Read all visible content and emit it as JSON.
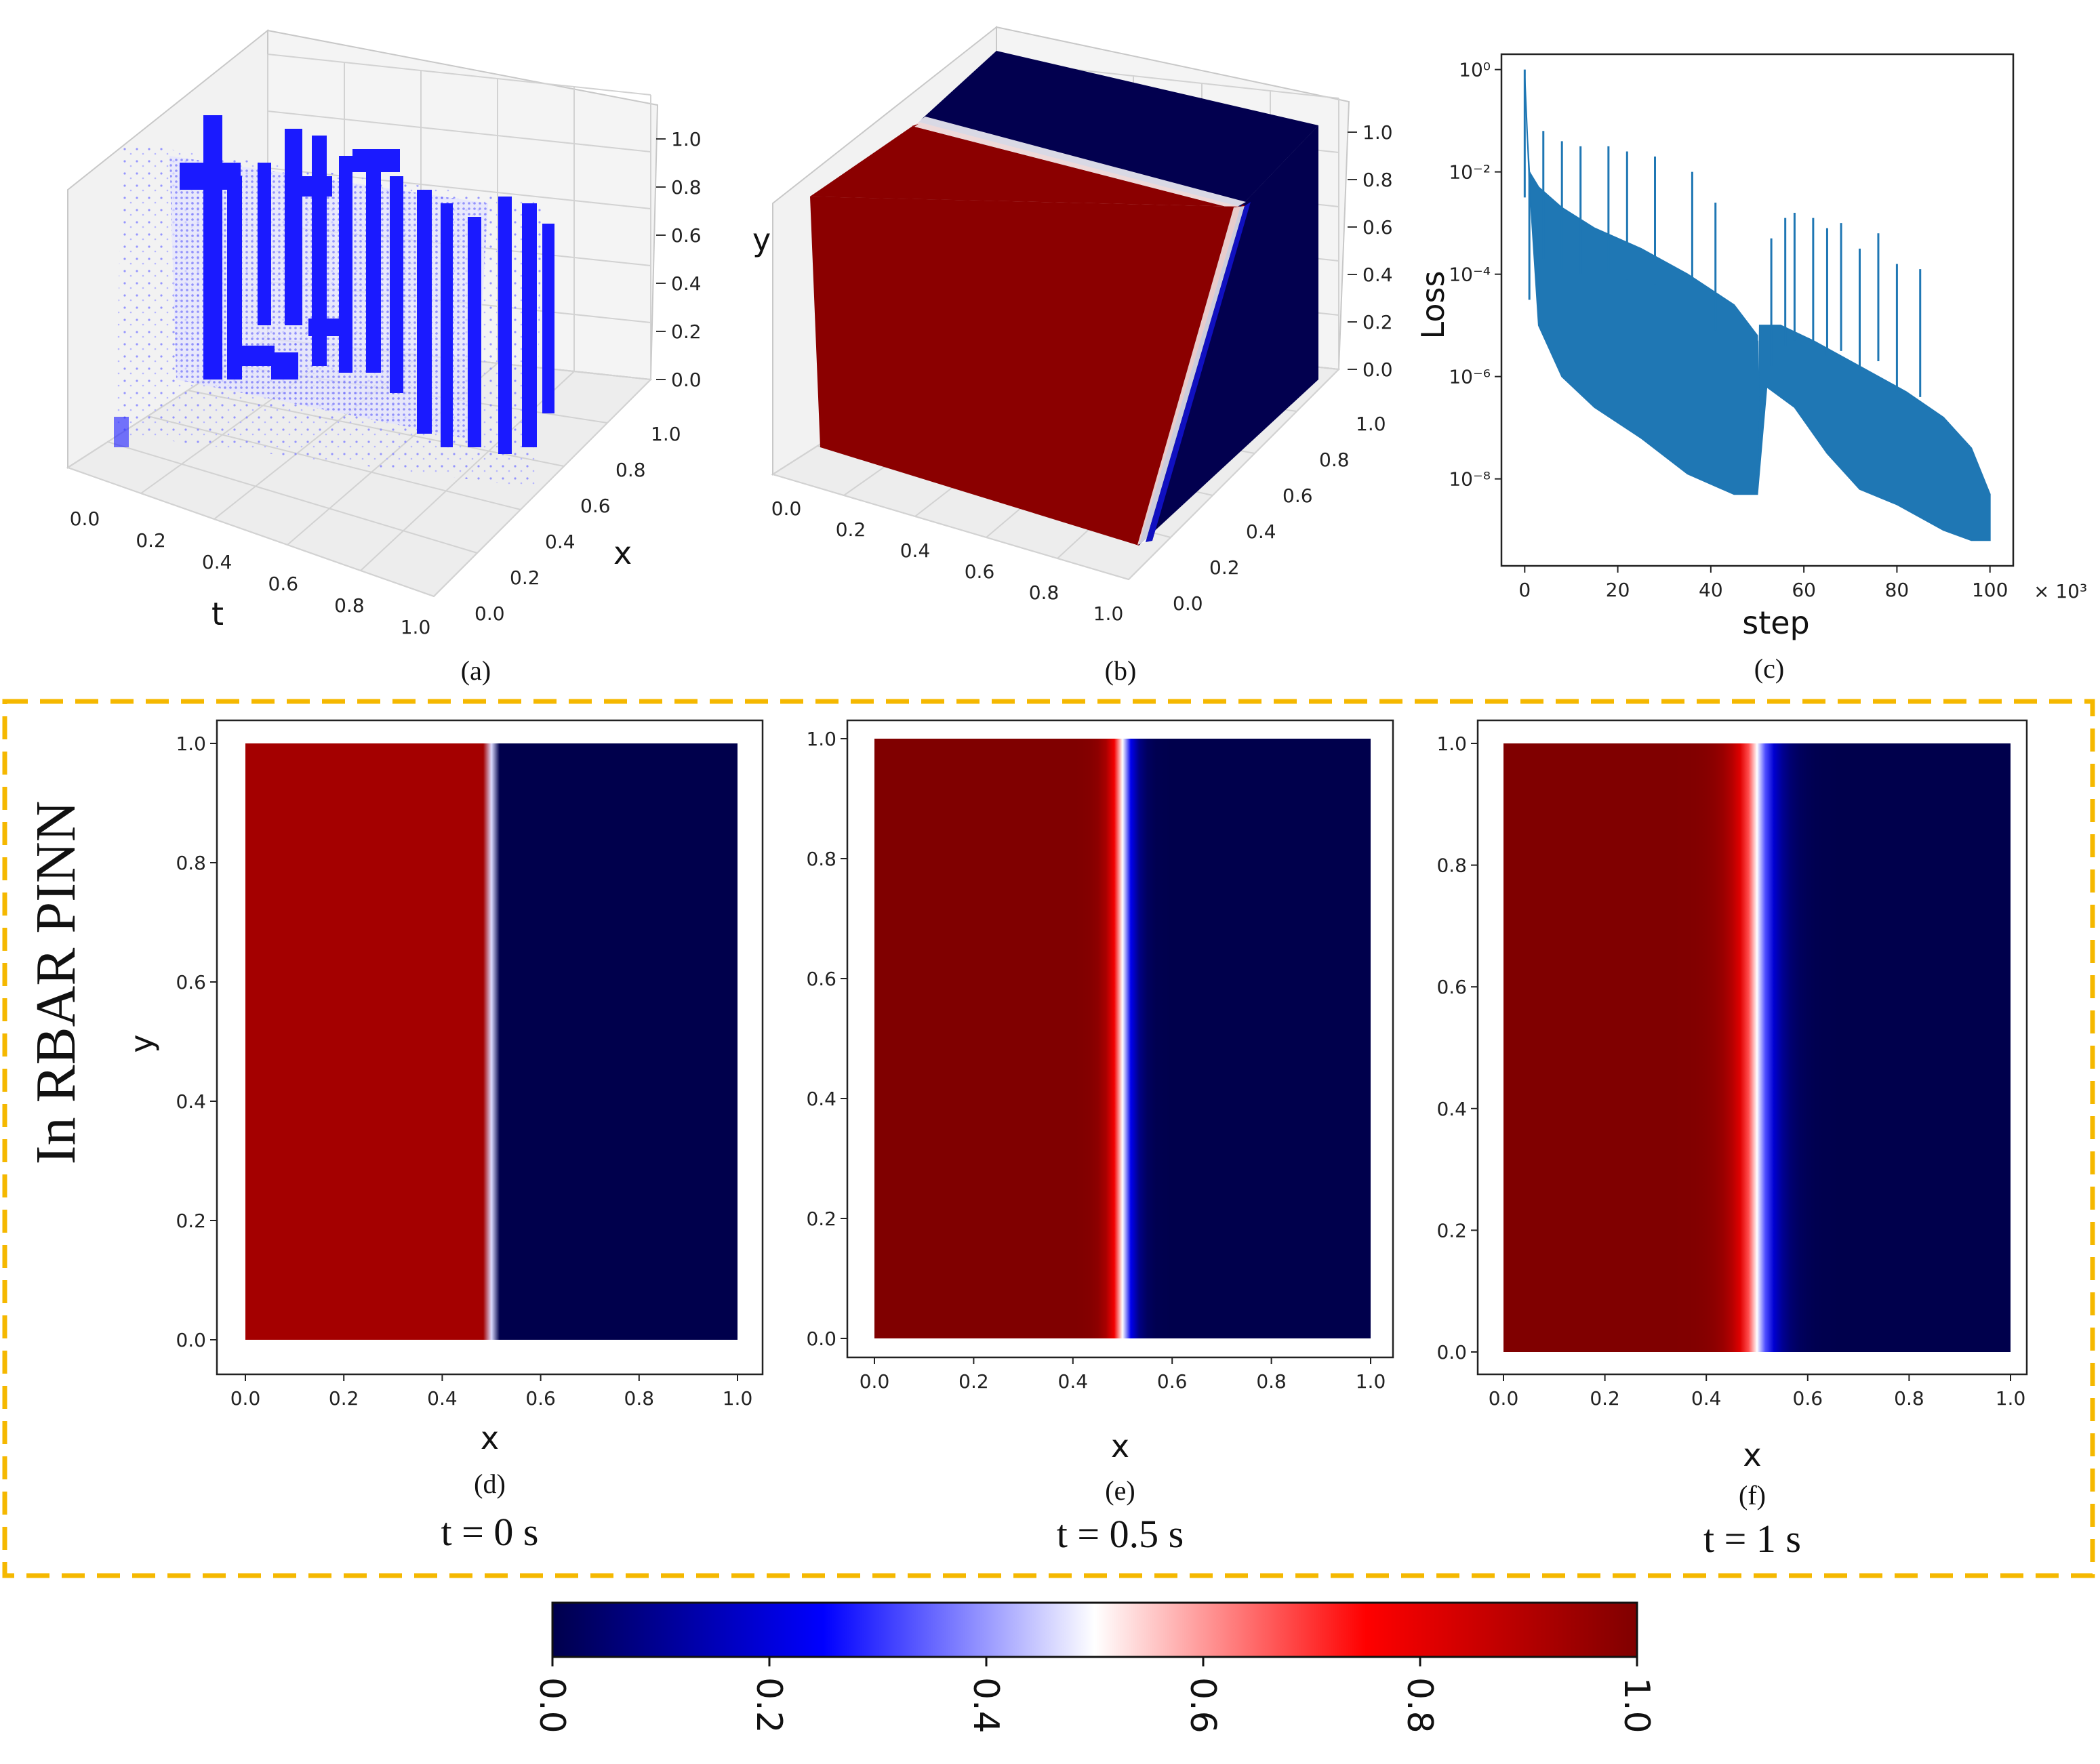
{
  "colors": {
    "red": "#8b0000",
    "red_d": "#a80000",
    "blue": "#02004f",
    "point_blue": "#1a1aff",
    "loss_blue": "#1f77b4",
    "frame_orange": "#f5b800",
    "cmap": [
      "#00004c",
      "#0000ff",
      "#ffffff",
      "#ff0000",
      "#800000"
    ]
  },
  "panels": {
    "a": {
      "caption": "(a)",
      "xlabel": "t",
      "ylabel": "x",
      "t_ticks": [
        "0.0",
        "0.2",
        "0.4",
        "0.6",
        "0.8",
        "1.0"
      ],
      "x_ticks": [
        "0.0",
        "0.2",
        "0.4",
        "0.6",
        "0.8",
        "1.0"
      ],
      "z_ticks": [
        "0.0",
        "0.2",
        "0.4",
        "0.6",
        "0.8",
        "1.0"
      ]
    },
    "b": {
      "caption": "(b)",
      "zlabel": "y",
      "t_ticks": [
        "0.0",
        "0.2",
        "0.4",
        "0.6",
        "0.8",
        "1.0"
      ],
      "x_ticks": [
        "0.0",
        "0.2",
        "0.4",
        "0.6",
        "0.8",
        "1.0"
      ],
      "z_ticks": [
        "0.0",
        "0.2",
        "0.4",
        "0.6",
        "0.8",
        "1.0"
      ]
    },
    "c": {
      "caption": "(c)",
      "xlabel": "step",
      "ylabel": "Loss",
      "x_multiplier": "× 10³"
    }
  },
  "group_label": "In RBAR PINN",
  "chart_data": [
    {
      "id": "c",
      "type": "line",
      "title": "",
      "xlabel": "step",
      "ylabel": "Loss",
      "x_scale_note": "× 10³",
      "xlim": [
        -5,
        105
      ],
      "ylim_log10": [
        -9.7,
        0.3
      ],
      "x_ticks": [
        0,
        20,
        40,
        60,
        80,
        100
      ],
      "y_ticks": [
        {
          "exp": 0,
          "label": "10⁰"
        },
        {
          "exp": -2,
          "label": "10⁻²"
        },
        {
          "exp": -4,
          "label": "10⁻⁴"
        },
        {
          "exp": -6,
          "label": "10⁻⁶"
        },
        {
          "exp": -8,
          "label": "10⁻⁸"
        }
      ],
      "series": [
        {
          "name": "loss",
          "upper_log10": [
            [
              0,
              -0.1
            ],
            [
              0.5,
              -1.2
            ],
            [
              1,
              -2.0
            ],
            [
              3,
              -2.3
            ],
            [
              8,
              -2.7
            ],
            [
              15,
              -3.1
            ],
            [
              25,
              -3.5
            ],
            [
              35,
              -4.0
            ],
            [
              45,
              -4.6
            ],
            [
              50,
              -5.2
            ]
          ],
          "lower_log10": [
            [
              0,
              -0.1
            ],
            [
              1,
              -2.2
            ],
            [
              3,
              -5.0
            ],
            [
              8,
              -6.0
            ],
            [
              15,
              -6.6
            ],
            [
              25,
              -7.2
            ],
            [
              35,
              -7.9
            ],
            [
              45,
              -8.3
            ],
            [
              50,
              -8.3
            ]
          ],
          "restart": {
            "upper_log10": [
              [
                50,
                -8.3
              ],
              [
                50.5,
                -5.0
              ],
              [
                55,
                -5.0
              ],
              [
                62,
                -5.3
              ],
              [
                72,
                -5.8
              ],
              [
                82,
                -6.3
              ],
              [
                90,
                -6.8
              ],
              [
                96,
                -7.4
              ],
              [
                100,
                -8.3
              ]
            ],
            "lower_log10": [
              [
                50,
                -8.3
              ],
              [
                52,
                -6.2
              ],
              [
                58,
                -6.6
              ],
              [
                65,
                -7.5
              ],
              [
                72,
                -8.2
              ],
              [
                80,
                -8.5
              ],
              [
                90,
                -9.0
              ],
              [
                96,
                -9.2
              ],
              [
                100,
                -9.2
              ]
            ]
          },
          "spikes": [
            [
              0,
              0.0
            ],
            [
              1,
              -2.0
            ],
            [
              4,
              -1.2
            ],
            [
              8,
              -1.4
            ],
            [
              12,
              -1.5
            ],
            [
              18,
              -1.5
            ],
            [
              22,
              -1.6
            ],
            [
              28,
              -1.7
            ],
            [
              36,
              -2.0
            ],
            [
              41,
              -2.6
            ],
            [
              50,
              -5.3
            ],
            [
              53,
              -3.3
            ],
            [
              56,
              -2.9
            ],
            [
              58,
              -2.8
            ],
            [
              62,
              -2.9
            ],
            [
              65,
              -3.1
            ],
            [
              68,
              -3.0
            ],
            [
              72,
              -3.5
            ],
            [
              76,
              -3.2
            ],
            [
              80,
              -3.8
            ],
            [
              85,
              -3.9
            ]
          ]
        }
      ]
    },
    {
      "id": "d",
      "type": "heatmap",
      "caption": "(d)",
      "time_label": "t = 0 s",
      "xlabel": "x",
      "ylabel": "y",
      "xlim": [
        0,
        1
      ],
      "ylim": [
        0,
        1
      ],
      "x_ticks": [
        "0.0",
        "0.2",
        "0.4",
        "0.6",
        "0.8",
        "1.0"
      ],
      "y_ticks": [
        "0.0",
        "0.2",
        "0.4",
        "0.6",
        "0.8",
        "1.0"
      ],
      "interface_x": 0.5,
      "transition_width": 0.003,
      "left_value": 0.93,
      "right_value": 0.0
    },
    {
      "id": "e",
      "type": "heatmap",
      "caption": "(e)",
      "time_label": "t = 0.5 s",
      "xlabel": "x",
      "ylabel": "y",
      "xlim": [
        0,
        1
      ],
      "ylim": [
        0,
        1
      ],
      "x_ticks": [
        "0.0",
        "0.2",
        "0.4",
        "0.6",
        "0.8",
        "1.0"
      ],
      "y_ticks": [
        "0.0",
        "0.2",
        "0.4",
        "0.6",
        "0.8",
        "1.0"
      ],
      "interface_x": 0.5,
      "transition_width": 0.03,
      "left_value": 1.0,
      "right_value": 0.0
    },
    {
      "id": "f",
      "type": "heatmap",
      "caption": "(f)",
      "time_label": "t = 1 s",
      "xlabel": "x",
      "ylabel": "y",
      "xlim": [
        0,
        1
      ],
      "ylim": [
        0,
        1
      ],
      "x_ticks": [
        "0.0",
        "0.2",
        "0.4",
        "0.6",
        "0.8",
        "1.0"
      ],
      "y_ticks": [
        "0.0",
        "0.2",
        "0.4",
        "0.6",
        "0.8",
        "1.0"
      ],
      "interface_x": 0.5,
      "transition_width": 0.05,
      "left_value": 1.0,
      "right_value": 0.0
    },
    {
      "id": "colorbar",
      "type": "colorbar",
      "range": [
        0.0,
        1.0
      ],
      "ticks": [
        "0.0",
        "0.2",
        "0.4",
        "0.6",
        "0.8",
        "1.0"
      ]
    }
  ]
}
